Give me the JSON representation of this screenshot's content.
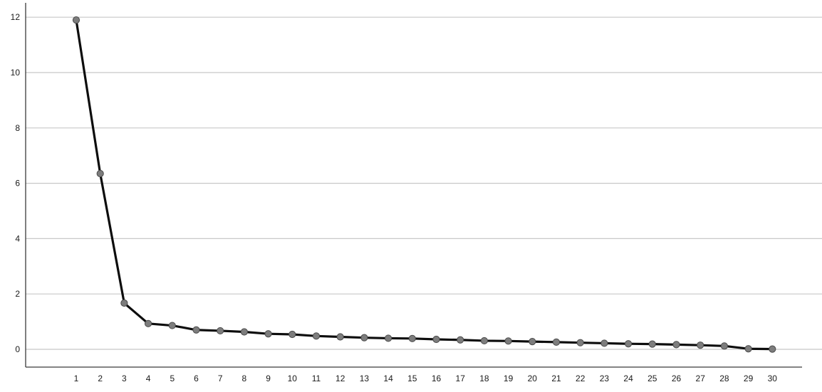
{
  "chart_data": {
    "type": "line",
    "title": "",
    "xlabel": "",
    "ylabel": "",
    "x": [
      1,
      2,
      3,
      4,
      5,
      6,
      7,
      8,
      9,
      10,
      11,
      12,
      13,
      14,
      15,
      16,
      17,
      18,
      19,
      20,
      21,
      22,
      23,
      24,
      25,
      26,
      27,
      28,
      29,
      30
    ],
    "series": [
      {
        "values": [
          11.9,
          6.35,
          1.67,
          0.93,
          0.86,
          0.7,
          0.67,
          0.63,
          0.56,
          0.54,
          0.48,
          0.45,
          0.42,
          0.4,
          0.39,
          0.36,
          0.34,
          0.31,
          0.3,
          0.28,
          0.26,
          0.24,
          0.22,
          0.2,
          0.19,
          0.17,
          0.15,
          0.12,
          0.02,
          0.01
        ]
      }
    ],
    "ylim": [
      -0.6,
      12.6
    ],
    "yticks": [
      0,
      2,
      4,
      6,
      8,
      10,
      12
    ],
    "grid": true,
    "colors": {
      "line": "#0d0d0d",
      "marker": "#7d7d7d",
      "grid": "#c8c8c8",
      "axis": "#3a3a3a"
    }
  }
}
